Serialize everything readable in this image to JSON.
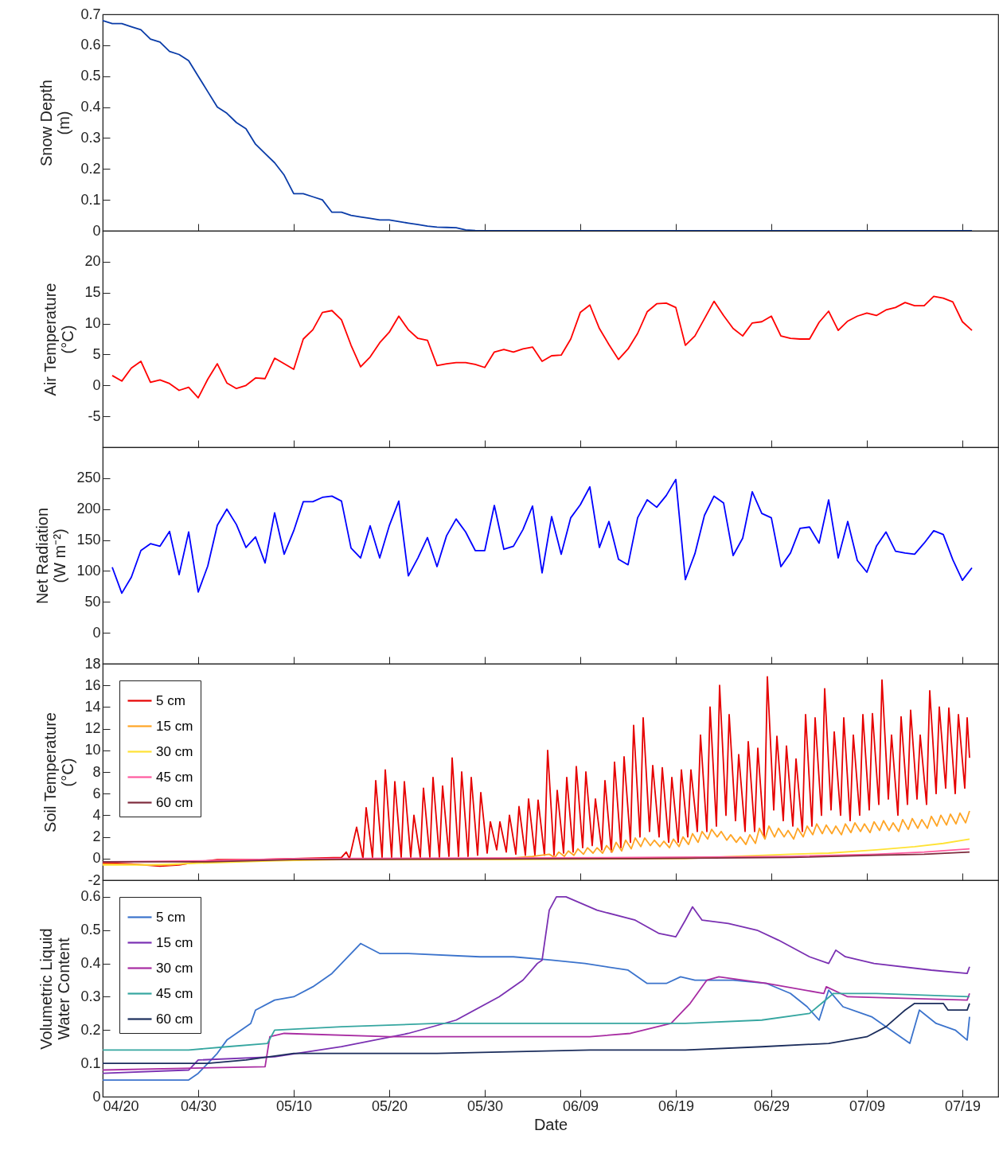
{
  "chart_data": [
    {
      "type": "line",
      "ylabel": "Snow Depth\n(m)",
      "tick_labels": "y",
      "xlim": [
        "--04-20",
        "--07-22T18:00"
      ],
      "xticks": [
        {
          "value": "--04-20",
          "label": null
        },
        {
          "value": "--04-30",
          "label": null
        },
        {
          "value": "--05-10",
          "label": null
        },
        {
          "value": "--05-20",
          "label": null
        },
        {
          "value": "--05-30",
          "label": null
        },
        {
          "value": "--06-09",
          "label": null
        },
        {
          "value": "--06-19",
          "label": null
        },
        {
          "value": "--06-29",
          "label": null
        },
        {
          "value": "--07-09",
          "label": null
        },
        {
          "value": "--07-19",
          "label": null
        }
      ],
      "ylim": [
        0,
        0.7
      ],
      "yticks": [
        0,
        0.1,
        0.2,
        0.3,
        0.4,
        0.5,
        0.6,
        0.7
      ],
      "x": [
        "--04-20",
        "--04-21",
        "--04-22",
        "--04-23",
        "--04-24",
        "--04-25",
        "--04-26",
        "--04-27",
        "--04-28",
        "--04-29",
        "--04-30",
        "--05-01",
        "--05-02",
        "--05-03",
        "--05-04",
        "--05-05",
        "--05-06",
        "--05-07",
        "--05-08",
        "--05-09",
        "--05-10",
        "--05-11",
        "--05-12",
        "--05-13",
        "--05-14",
        "--05-15",
        "--05-16",
        "--05-17",
        "--05-18",
        "--05-19",
        "--05-20",
        "--05-21",
        "--05-22",
        "--05-23",
        "--05-24",
        "--05-25",
        "--05-26",
        "--05-27",
        "--05-28",
        "--05-29",
        "--05-30",
        "--05-31",
        "--06-01",
        "--06-02",
        "--06-03",
        "--06-04",
        "--06-05",
        "--06-06",
        "--06-07",
        "--06-08",
        "--06-09",
        "--06-10",
        "--06-11",
        "--06-12",
        "--06-13",
        "--06-14",
        "--06-15",
        "--06-16",
        "--06-17",
        "--06-18",
        "--06-19",
        "--06-20",
        "--06-21",
        "--06-22",
        "--06-23",
        "--06-24",
        "--06-25",
        "--06-26",
        "--06-27",
        "--06-28",
        "--06-29",
        "--06-30",
        "--07-01",
        "--07-02",
        "--07-03",
        "--07-04",
        "--07-05",
        "--07-06",
        "--07-07",
        "--07-08",
        "--07-09",
        "--07-10",
        "--07-11",
        "--07-12",
        "--07-13",
        "--07-14",
        "--07-15",
        "--07-16",
        "--07-17",
        "--07-18",
        "--07-19",
        "--07-20"
      ],
      "series": [
        {
          "color": "#0a3ca8",
          "values": [
            0.68,
            0.67,
            0.67,
            0.66,
            0.65,
            0.62,
            0.61,
            0.58,
            0.57,
            0.55,
            0.5,
            0.45,
            0.4,
            0.38,
            0.35,
            0.33,
            0.28,
            0.25,
            0.22,
            0.18,
            0.12,
            0.12,
            0.11,
            0.1,
            0.06,
            0.06,
            0.05,
            0.045,
            0.04,
            0.035,
            0.035,
            0.03,
            0.025,
            0.02,
            0.015,
            0.012,
            0.011,
            0.01,
            0.003,
            0.001,
            0,
            0,
            0,
            0,
            0,
            0,
            0,
            0,
            0,
            0,
            0,
            0,
            0,
            0,
            0,
            0,
            0,
            0,
            0,
            0,
            0,
            0,
            0,
            0,
            0,
            0,
            0,
            0,
            0,
            0,
            0,
            0,
            0,
            0,
            0,
            0,
            0,
            0,
            0,
            0,
            0,
            0,
            0,
            0,
            0,
            0,
            0,
            0,
            0,
            0,
            0,
            0
          ]
        }
      ]
    },
    {
      "type": "line",
      "ylabel": "Air Temperature\n(°C)",
      "tick_labels": "y",
      "xlim": [
        "--04-20",
        "--07-22T18:00"
      ],
      "xticks": [
        {
          "value": "--04-20",
          "label": null
        },
        {
          "value": "--04-30",
          "label": null
        },
        {
          "value": "--05-10",
          "label": null
        },
        {
          "value": "--05-20",
          "label": null
        },
        {
          "value": "--05-30",
          "label": null
        },
        {
          "value": "--06-09",
          "label": null
        },
        {
          "value": "--06-19",
          "label": null
        },
        {
          "value": "--06-29",
          "label": null
        },
        {
          "value": "--07-09",
          "label": null
        },
        {
          "value": "--07-19",
          "label": null
        }
      ],
      "ylim": [
        -10,
        25
      ],
      "yticks": [
        -5,
        0,
        5,
        10,
        15,
        20
      ],
      "x": [
        "--04-21",
        "--04-22",
        "--04-23",
        "--04-24",
        "--04-25",
        "--04-26",
        "--04-27",
        "--04-28",
        "--04-29",
        "--04-30",
        "--05-01",
        "--05-02",
        "--05-03",
        "--05-04",
        "--05-05",
        "--05-06",
        "--05-07",
        "--05-08",
        "--05-09",
        "--05-10",
        "--05-11",
        "--05-12",
        "--05-13",
        "--05-14",
        "--05-15",
        "--05-16",
        "--05-17",
        "--05-18",
        "--05-19",
        "--05-20",
        "--05-21",
        "--05-22",
        "--05-23",
        "--05-24",
        "--05-25",
        "--05-26",
        "--05-27",
        "--05-28",
        "--05-29",
        "--05-30",
        "--05-31",
        "--06-01",
        "--06-02",
        "--06-03",
        "--06-04",
        "--06-05",
        "--06-06",
        "--06-07",
        "--06-08",
        "--06-09",
        "--06-10",
        "--06-11",
        "--06-12",
        "--06-13",
        "--06-14",
        "--06-15",
        "--06-16",
        "--06-17",
        "--06-18",
        "--06-19",
        "--06-20",
        "--06-21",
        "--06-22",
        "--06-23",
        "--06-24",
        "--06-25",
        "--06-26",
        "--06-27",
        "--06-28",
        "--06-29",
        "--06-30",
        "--07-01",
        "--07-02",
        "--07-03",
        "--07-04",
        "--07-05",
        "--07-06",
        "--07-07",
        "--07-08",
        "--07-09",
        "--07-10",
        "--07-11",
        "--07-12",
        "--07-13",
        "--07-14",
        "--07-15",
        "--07-16",
        "--07-17",
        "--07-18",
        "--07-19",
        "--07-20"
      ],
      "series": [
        {
          "color": "#ff0000",
          "values": [
            1.6,
            0.7,
            2.8,
            3.9,
            0.5,
            0.9,
            0.3,
            -0.8,
            -0.3,
            -2.0,
            1.0,
            3.5,
            0.4,
            -0.5,
            0,
            1.2,
            1.1,
            4.4,
            3.5,
            2.6,
            7.5,
            9.0,
            11.8,
            12.1,
            10.6,
            6.5,
            3.0,
            4.6,
            6.9,
            8.6,
            11.2,
            9.0,
            7.6,
            7.3,
            3.2,
            3.5,
            3.7,
            3.7,
            3.4,
            2.9,
            5.4,
            5.8,
            5.4,
            5.9,
            6.2,
            3.9,
            4.8,
            4.9,
            7.5,
            11.8,
            13.0,
            9.2,
            6.6,
            4.2,
            5.9,
            8.4,
            11.9,
            13.2,
            13.3,
            12.6,
            6.5,
            8.0,
            10.8,
            13.6,
            11.3,
            9.2,
            8.0,
            10.1,
            10.3,
            11.2,
            8.0,
            7.6,
            7.5,
            7.5,
            10.2,
            12.0,
            8.9,
            10.4,
            11.2,
            11.7,
            11.3,
            12.2,
            12.6,
            13.4,
            12.9,
            12.9,
            14.4,
            14.1,
            13.5,
            10.3,
            8.9
          ]
        }
      ]
    },
    {
      "type": "line",
      "ylabel": "Net Radiation\n(W m⁻²)",
      "tick_labels": "y",
      "xlim": [
        "--04-20",
        "--07-22T18:00"
      ],
      "xticks": [
        {
          "value": "--04-20",
          "label": null
        },
        {
          "value": "--04-30",
          "label": null
        },
        {
          "value": "--05-10",
          "label": null
        },
        {
          "value": "--05-20",
          "label": null
        },
        {
          "value": "--05-30",
          "label": null
        },
        {
          "value": "--06-09",
          "label": null
        },
        {
          "value": "--06-19",
          "label": null
        },
        {
          "value": "--06-29",
          "label": null
        },
        {
          "value": "--07-09",
          "label": null
        },
        {
          "value": "--07-19",
          "label": null
        }
      ],
      "ylim": [
        -50,
        300
      ],
      "yticks": [
        0,
        50,
        100,
        150,
        200,
        250
      ],
      "x": [
        "--04-21",
        "--04-22",
        "--04-23",
        "--04-24",
        "--04-25",
        "--04-26",
        "--04-27",
        "--04-28",
        "--04-29",
        "--04-30",
        "--05-01",
        "--05-02",
        "--05-03",
        "--05-04",
        "--05-05",
        "--05-06",
        "--05-07",
        "--05-08",
        "--05-09",
        "--05-10",
        "--05-11",
        "--05-12",
        "--05-13",
        "--05-14",
        "--05-15",
        "--05-16",
        "--05-17",
        "--05-18",
        "--05-19",
        "--05-20",
        "--05-21",
        "--05-22",
        "--05-23",
        "--05-24",
        "--05-25",
        "--05-26",
        "--05-27",
        "--05-28",
        "--05-29",
        "--05-30",
        "--05-31",
        "--06-01",
        "--06-02",
        "--06-03",
        "--06-04",
        "--06-05",
        "--06-06",
        "--06-07",
        "--06-08",
        "--06-09",
        "--06-10",
        "--06-11",
        "--06-12",
        "--06-13",
        "--06-14",
        "--06-15",
        "--06-16",
        "--06-17",
        "--06-18",
        "--06-19",
        "--06-20",
        "--06-21",
        "--06-22",
        "--06-23",
        "--06-24",
        "--06-25",
        "--06-26",
        "--06-27",
        "--06-28",
        "--06-29",
        "--06-30",
        "--07-01",
        "--07-02",
        "--07-03",
        "--07-04",
        "--07-05",
        "--07-06",
        "--07-07",
        "--07-08",
        "--07-09",
        "--07-10",
        "--07-11",
        "--07-12",
        "--07-13",
        "--07-14",
        "--07-15",
        "--07-16",
        "--07-17",
        "--07-18",
        "--07-19",
        "--07-20"
      ],
      "series": [
        {
          "color": "#0000ff",
          "values": [
            106,
            64,
            90,
            133,
            144,
            140,
            164,
            94,
            163,
            66,
            108,
            174,
            200,
            175,
            138,
            155,
            113,
            194,
            127,
            165,
            212,
            212,
            219,
            221,
            213,
            137,
            121,
            173,
            121,
            173,
            213,
            92,
            121,
            154,
            107,
            157,
            184,
            163,
            133,
            133,
            206,
            135,
            140,
            167,
            205,
            97,
            188,
            127,
            186,
            207,
            236,
            138,
            180,
            119,
            110,
            186,
            215,
            203,
            222,
            248,
            86,
            128,
            190,
            221,
            210,
            125,
            153,
            228,
            193,
            186,
            107,
            129,
            169,
            171,
            145,
            215,
            121,
            180,
            117,
            98,
            140,
            163,
            132,
            129,
            127,
            145,
            165,
            159,
            118,
            85,
            105
          ]
        }
      ]
    },
    {
      "type": "line",
      "ylabel": "Soil Temperature\n(°C)",
      "tick_labels": "y",
      "legend": "top left",
      "xlim": [
        "--04-20",
        "--07-22T18:00"
      ],
      "xticks": [
        {
          "value": "--04-20",
          "label": null
        },
        {
          "value": "--04-30",
          "label": null
        },
        {
          "value": "--05-10",
          "label": null
        },
        {
          "value": "--05-20",
          "label": null
        },
        {
          "value": "--05-30",
          "label": null
        },
        {
          "value": "--06-09",
          "label": null
        },
        {
          "value": "--06-19",
          "label": null
        },
        {
          "value": "--06-29",
          "label": null
        },
        {
          "value": "--07-09",
          "label": null
        },
        {
          "value": "--07-19",
          "label": null
        }
      ],
      "ylim": [
        -2,
        18
      ],
      "yticks": [
        -2,
        0,
        2,
        4,
        6,
        8,
        10,
        12,
        14,
        16,
        18
      ],
      "series": [
        {
          "name": "5 cm",
          "color": "#e60000",
          "x": [
            "--04-20",
            "--04-23",
            "--04-26",
            "--04-28",
            "--04-30",
            "--05-02",
            "--05-06",
            "--05-10",
            "--05-15",
            "--05-15T12:00",
            "--05-15T20:00",
            "--05-16T14:00",
            "--05-17T06:00",
            "--05-17T14:00",
            "--05-18T06:00",
            "--05-18T14:00",
            "--05-19T06:00",
            "--05-19T14:00",
            "--05-20T06:00",
            "--05-20T14:00",
            "--05-21T06:00",
            "--05-21T14:00",
            "--05-22T06:00",
            "--05-22T14:00",
            "--05-23T06:00",
            "--05-23T14:00",
            "--05-24T06:00",
            "--05-24T14:00",
            "--05-25T06:00",
            "--05-25T14:00",
            "--05-26T06:00",
            "--05-26T14:00",
            "--05-27T06:00",
            "--05-27T14:00",
            "--05-28T06:00",
            "--05-28T14:00",
            "--05-29T06:00",
            "--05-29T14:00",
            "--05-30T06:00",
            "--05-30T14:00",
            "--05-31T06:00",
            "--05-31T14:00",
            "--06-01T06:00",
            "--06-01T14:00",
            "--06-02T06:00",
            "--06-02T14:00",
            "--06-03T06:00",
            "--06-03T14:00",
            "--06-04T06:00",
            "--06-04T14:00",
            "--06-05T06:00",
            "--06-05T14:00",
            "--06-06T06:00",
            "--06-06T14:00",
            "--06-07T06:00",
            "--06-07T14:00",
            "--06-08T06:00",
            "--06-08T14:00",
            "--06-09T06:00",
            "--06-09T14:00",
            "--06-10T06:00",
            "--06-10T14:00",
            "--06-11T06:00",
            "--06-11T14:00",
            "--06-12T06:00",
            "--06-12T14:00",
            "--06-13T06:00",
            "--06-13T14:00",
            "--06-14T06:00",
            "--06-14T14:00",
            "--06-15T06:00",
            "--06-15T14:00",
            "--06-16T06:00",
            "--06-16T14:00",
            "--06-17T06:00",
            "--06-17T14:00",
            "--06-18T06:00",
            "--06-18T14:00",
            "--06-19T06:00",
            "--06-19T14:00",
            "--06-20T06:00",
            "--06-20T14:00",
            "--06-21T06:00",
            "--06-21T14:00",
            "--06-22T06:00",
            "--06-22T14:00",
            "--06-23T06:00",
            "--06-23T14:00",
            "--06-24T06:00",
            "--06-24T14:00",
            "--06-25T06:00",
            "--06-25T14:00",
            "--06-26T06:00",
            "--06-26T14:00",
            "--06-27T06:00",
            "--06-27T14:00",
            "--06-28T06:00",
            "--06-28T14:00",
            "--06-29T06:00",
            "--06-29T14:00",
            "--06-30T06:00",
            "--06-30T14:00",
            "--07-01T06:00",
            "--07-01T14:00",
            "--07-02T06:00",
            "--07-02T14:00",
            "--07-03T06:00",
            "--07-03T14:00",
            "--07-04T06:00",
            "--07-04T14:00",
            "--07-05T06:00",
            "--07-05T14:00",
            "--07-06T06:00",
            "--07-06T14:00",
            "--07-07T06:00",
            "--07-07T14:00",
            "--07-08T06:00",
            "--07-08T14:00",
            "--07-09T06:00",
            "--07-09T14:00",
            "--07-10T06:00",
            "--07-10T14:00",
            "--07-11T06:00",
            "--07-11T14:00",
            "--07-12T06:00",
            "--07-12T14:00",
            "--07-13T06:00",
            "--07-13T14:00",
            "--07-14T06:00",
            "--07-14T14:00",
            "--07-15T06:00",
            "--07-15T14:00",
            "--07-16T06:00",
            "--07-16T14:00",
            "--07-17T06:00",
            "--07-17T14:00",
            "--07-18T06:00",
            "--07-18T14:00",
            "--07-19T06:00",
            "--07-19T12:00",
            "--07-19T18:00"
          ],
          "values": [
            -0.4,
            -0.5,
            -0.7,
            -0.6,
            -0.3,
            -0.1,
            -0.1,
            0,
            0.1,
            0.6,
            0.0,
            2.9,
            0.0,
            4.7,
            0.1,
            7.2,
            0.1,
            8.2,
            0.1,
            7.1,
            0.1,
            7.1,
            0.1,
            4.0,
            0.1,
            6.5,
            0.1,
            7.5,
            0.1,
            6.7,
            0.2,
            9.3,
            0.2,
            8.0,
            0.2,
            7.5,
            0.3,
            6.1,
            0.5,
            3.4,
            0.8,
            3.4,
            0.6,
            4.0,
            0.4,
            4.8,
            0.3,
            5.5,
            0.3,
            5.4,
            0.3,
            10.0,
            0.3,
            6.3,
            0.5,
            7.5,
            0.6,
            8.5,
            1.0,
            8.0,
            1.2,
            5.5,
            0.8,
            7.2,
            0.6,
            8.9,
            1.0,
            9.4,
            1.5,
            12.3,
            2.0,
            13.0,
            2.5,
            8.6,
            2.0,
            8.4,
            1.5,
            7.5,
            1.5,
            8.2,
            2.0,
            8.2,
            2.5,
            11.4,
            2.5,
            14.0,
            3.0,
            16.0,
            4.0,
            13.3,
            3.5,
            9.6,
            2.5,
            10.8,
            2.5,
            10.2,
            2.0,
            16.8,
            4.5,
            11.3,
            3.5,
            10.4,
            3.0,
            9.2,
            2.5,
            13.3,
            3.0,
            13.0,
            4.0,
            15.7,
            4.5,
            11.7,
            4.0,
            13.0,
            3.5,
            11.4,
            4.0,
            13.3,
            4.5,
            13.4,
            5.0,
            16.5,
            5.5,
            11.4,
            4.0,
            13.1,
            5.0,
            13.7,
            5.5,
            11.4,
            5.0,
            15.5,
            6.0,
            14.0,
            6.5,
            13.9,
            6.0,
            13.3,
            6.5,
            13.0,
            9.3
          ]
        },
        {
          "name": "15 cm",
          "color": "#ffa526",
          "x": [
            "--04-20",
            "--04-27",
            "--05-01",
            "--05-08",
            "--05-20",
            "--06-01",
            "--06-04",
            "--06-05T18:00",
            "--06-06T08:00",
            "--06-06T18:00",
            "--06-07T08:00",
            "--06-07T18:00",
            "--06-08T08:00",
            "--06-08T18:00",
            "--06-09T08:00",
            "--06-09T18:00",
            "--06-10T08:00",
            "--06-10T18:00",
            "--06-11T08:00",
            "--06-11T18:00",
            "--06-12T08:00",
            "--06-12T18:00",
            "--06-13T08:00",
            "--06-13T18:00",
            "--06-14T08:00",
            "--06-14T18:00",
            "--06-15T08:00",
            "--06-15T18:00",
            "--06-16T08:00",
            "--06-16T18:00",
            "--06-17T08:00",
            "--06-17T18:00",
            "--06-18T08:00",
            "--06-18T18:00",
            "--06-19T08:00",
            "--06-19T18:00",
            "--06-20T08:00",
            "--06-20T18:00",
            "--06-21T08:00",
            "--06-21T18:00",
            "--06-22T08:00",
            "--06-22T18:00",
            "--06-23T08:00",
            "--06-23T18:00",
            "--06-24T08:00",
            "--06-24T18:00",
            "--06-25T08:00",
            "--06-25T18:00",
            "--06-26T08:00",
            "--06-26T18:00",
            "--06-27T08:00",
            "--06-27T18:00",
            "--06-28T08:00",
            "--06-28T18:00",
            "--06-29T08:00",
            "--06-29T18:00",
            "--06-30T08:00",
            "--06-30T18:00",
            "--07-01T08:00",
            "--07-01T18:00",
            "--07-02T08:00",
            "--07-02T18:00",
            "--07-03T08:00",
            "--07-03T18:00",
            "--07-04T08:00",
            "--07-04T18:00",
            "--07-05T08:00",
            "--07-05T18:00",
            "--07-06T08:00",
            "--07-06T18:00",
            "--07-07T08:00",
            "--07-07T18:00",
            "--07-08T08:00",
            "--07-08T18:00",
            "--07-09T08:00",
            "--07-09T18:00",
            "--07-10T08:00",
            "--07-10T18:00",
            "--07-11T08:00",
            "--07-11T18:00",
            "--07-12T08:00",
            "--07-12T18:00",
            "--07-13T08:00",
            "--07-13T18:00",
            "--07-14T08:00",
            "--07-14T18:00",
            "--07-15T08:00",
            "--07-15T18:00",
            "--07-16T08:00",
            "--07-16T18:00",
            "--07-17T08:00",
            "--07-17T18:00",
            "--07-18T08:00",
            "--07-18T18:00",
            "--07-19T08:00",
            "--07-19T18:00"
          ],
          "values": [
            -0.5,
            -0.6,
            -0.3,
            -0.1,
            0.0,
            0.0,
            0.2,
            0.4,
            0.1,
            0.6,
            0.2,
            0.7,
            0.3,
            0.9,
            0.4,
            1.0,
            0.5,
            1.0,
            0.5,
            1.2,
            0.6,
            1.5,
            0.7,
            1.7,
            0.9,
            1.9,
            1.1,
            1.9,
            1.2,
            1.7,
            1.1,
            1.6,
            1.0,
            1.8,
            1.1,
            2.0,
            1.3,
            2.3,
            1.5,
            2.5,
            1.8,
            2.7,
            2.0,
            2.5,
            1.7,
            2.2,
            1.5,
            2.0,
            1.3,
            2.2,
            1.4,
            2.8,
            1.8,
            3.0,
            2.0,
            2.8,
            2.0,
            2.6,
            1.8,
            2.8,
            2.0,
            3.0,
            2.2,
            3.2,
            2.3,
            3.1,
            2.3,
            3.0,
            2.2,
            3.2,
            2.4,
            3.3,
            2.5,
            3.2,
            2.4,
            3.4,
            2.6,
            3.5,
            2.6,
            3.3,
            2.5,
            3.6,
            2.7,
            3.7,
            2.8,
            3.6,
            2.8,
            3.9,
            3.0,
            4.0,
            3.1,
            4.1,
            3.2,
            4.2,
            3.3,
            4.4
          ]
        },
        {
          "name": "30 cm",
          "color": "#ffe234",
          "x": [
            "--04-20",
            "--04-25",
            "--05-01",
            "--05-08",
            "--05-15",
            "--06-01",
            "--06-20",
            "--06-25",
            "--07-01",
            "--07-05",
            "--07-10",
            "--07-14",
            "--07-17",
            "--07-19T18:00"
          ],
          "values": [
            -0.6,
            -0.6,
            -0.4,
            -0.2,
            -0.1,
            -0.1,
            0.0,
            0.2,
            0.4,
            0.5,
            0.8,
            1.1,
            1.4,
            1.8
          ]
        },
        {
          "name": "45 cm",
          "color": "#ff5a9e",
          "x": [
            "--04-20",
            "--05-01",
            "--05-10",
            "--06-15",
            "--07-01",
            "--07-10",
            "--07-15",
            "--07-19T18:00"
          ],
          "values": [
            -0.3,
            -0.2,
            0.0,
            0.1,
            0.2,
            0.4,
            0.6,
            0.9
          ]
        },
        {
          "name": "60 cm",
          "color": "#7d2a3c",
          "x": [
            "--04-20",
            "--05-01",
            "--05-10",
            "--06-15",
            "--07-01",
            "--07-10",
            "--07-15",
            "--07-19T18:00"
          ],
          "values": [
            -0.3,
            -0.3,
            -0.1,
            0.0,
            0.1,
            0.3,
            0.4,
            0.6
          ]
        }
      ]
    },
    {
      "type": "line",
      "ylabel": "Volumetric Liquid\nWater Content",
      "xlabel": "Date",
      "legend": "top left",
      "xlim": [
        "--04-20",
        "--07-22T18:00"
      ],
      "xticks": [
        {
          "value": "--04-20",
          "label": "04/20"
        },
        {
          "value": "--04-30",
          "label": "04/30"
        },
        {
          "value": "--05-10",
          "label": "05/10"
        },
        {
          "value": "--05-20",
          "label": "05/20"
        },
        {
          "value": "--05-30",
          "label": "05/30"
        },
        {
          "value": "--06-09",
          "label": "06/09"
        },
        {
          "value": "--06-19",
          "label": "06/19"
        },
        {
          "value": "--06-29",
          "label": "06/29"
        },
        {
          "value": "--07-09",
          "label": "07/09"
        },
        {
          "value": "--07-19",
          "label": "07/19"
        }
      ],
      "ylim": [
        0,
        0.65
      ],
      "yticks": [
        0,
        0.1,
        0.2,
        0.3,
        0.4,
        0.5,
        0.6
      ],
      "series": [
        {
          "name": "5 cm",
          "color": "#3b73cc",
          "x": [
            "--04-20",
            "--04-29",
            "--04-30",
            "--05-02",
            "--05-03",
            "--05-05T12:00",
            "--05-06",
            "--05-08",
            "--05-10",
            "--05-12",
            "--05-14",
            "--05-15",
            "--05-17",
            "--05-19",
            "--05-22",
            "--05-29T12:00",
            "--06-02",
            "--06-06",
            "--06-09T12:00",
            "--06-14",
            "--06-16",
            "--06-18",
            "--06-19T12:00",
            "--06-21",
            "--06-25",
            "--06-28T12:00",
            "--07-01",
            "--07-02T18:00",
            "--07-04",
            "--07-05",
            "--07-06T12:00",
            "--07-09T12:00",
            "--07-11T12:00",
            "--07-13T12:00",
            "--07-14T12:00",
            "--07-16T06:00",
            "--07-18T06:00",
            "--07-19T12:00",
            "--07-19T18:00"
          ],
          "values": [
            0.05,
            0.05,
            0.07,
            0.13,
            0.17,
            0.22,
            0.26,
            0.29,
            0.3,
            0.33,
            0.37,
            0.4,
            0.46,
            0.43,
            0.43,
            0.42,
            0.42,
            0.41,
            0.4,
            0.38,
            0.34,
            0.34,
            0.36,
            0.35,
            0.35,
            0.34,
            0.31,
            0.27,
            0.23,
            0.32,
            0.27,
            0.24,
            0.2,
            0.16,
            0.26,
            0.22,
            0.2,
            0.17,
            0.24
          ]
        },
        {
          "name": "15 cm",
          "color": "#7a30b2",
          "x": [
            "--04-20",
            "--04-29",
            "--04-30",
            "--05-08",
            "--05-15",
            "--05-22",
            "--05-27",
            "--05-31T12:00",
            "--06-03",
            "--06-04T12:00",
            "--06-05",
            "--06-05T18:00",
            "--06-06T12:00",
            "--06-07T12:00",
            "--06-10T18:00",
            "--06-14T18:00",
            "--06-17T06:00",
            "--06-19",
            "--06-20",
            "--06-20T18:00",
            "--06-21T18:00",
            "--06-24T12:00",
            "--06-27T12:00",
            "--06-29T18:00",
            "--07-03",
            "--07-05",
            "--07-05T18:00",
            "--07-06T18:00",
            "--07-09T18:00",
            "--07-15T18:00",
            "--07-19T12:00",
            "--07-19T18:00"
          ],
          "values": [
            0.07,
            0.08,
            0.11,
            0.12,
            0.15,
            0.19,
            0.23,
            0.3,
            0.35,
            0.4,
            0.41,
            0.56,
            0.6,
            0.6,
            0.56,
            0.53,
            0.49,
            0.48,
            0.53,
            0.57,
            0.53,
            0.52,
            0.5,
            0.47,
            0.42,
            0.4,
            0.44,
            0.42,
            0.4,
            0.38,
            0.37,
            0.39
          ]
        },
        {
          "name": "30 cm",
          "color": "#a82ca2",
          "x": [
            "--04-20",
            "--05-07",
            "--05-07T12:00",
            "--05-09",
            "--05-20",
            "--06-10",
            "--06-14T06:00",
            "--06-18T12:00",
            "--06-20T12:00",
            "--06-22T06:00",
            "--06-23T12:00",
            "--06-28T12:00",
            "--07-04T12:00",
            "--07-04T18:00",
            "--07-07",
            "--07-19T12:00",
            "--07-19T18:00"
          ],
          "values": [
            0.08,
            0.09,
            0.18,
            0.19,
            0.18,
            0.18,
            0.19,
            0.22,
            0.28,
            0.35,
            0.36,
            0.34,
            0.31,
            0.33,
            0.3,
            0.29,
            0.31
          ]
        },
        {
          "name": "45 cm",
          "color": "#35a6a0",
          "x": [
            "--04-20",
            "--04-29",
            "--05-03",
            "--05-07T06:00",
            "--05-08",
            "--05-15",
            "--05-25",
            "--06-20",
            "--06-28",
            "--07-03",
            "--07-05T12:00",
            "--07-10",
            "--07-19T18:00"
          ],
          "values": [
            0.14,
            0.14,
            0.15,
            0.16,
            0.2,
            0.21,
            0.22,
            0.22,
            0.23,
            0.25,
            0.31,
            0.31,
            0.3
          ]
        },
        {
          "name": "60 cm",
          "color": "#1b2d5c",
          "x": [
            "--04-20",
            "--05-01",
            "--05-05",
            "--05-10",
            "--05-25",
            "--06-10",
            "--06-20",
            "--06-28",
            "--07-05",
            "--07-09",
            "--07-11",
            "--07-13",
            "--07-14",
            "--07-17",
            "--07-17T12:00",
            "--07-19T12:00",
            "--07-19T18:00"
          ],
          "values": [
            0.1,
            0.1,
            0.11,
            0.13,
            0.13,
            0.14,
            0.14,
            0.15,
            0.16,
            0.18,
            0.21,
            0.26,
            0.28,
            0.28,
            0.26,
            0.26,
            0.28
          ]
        }
      ]
    }
  ]
}
